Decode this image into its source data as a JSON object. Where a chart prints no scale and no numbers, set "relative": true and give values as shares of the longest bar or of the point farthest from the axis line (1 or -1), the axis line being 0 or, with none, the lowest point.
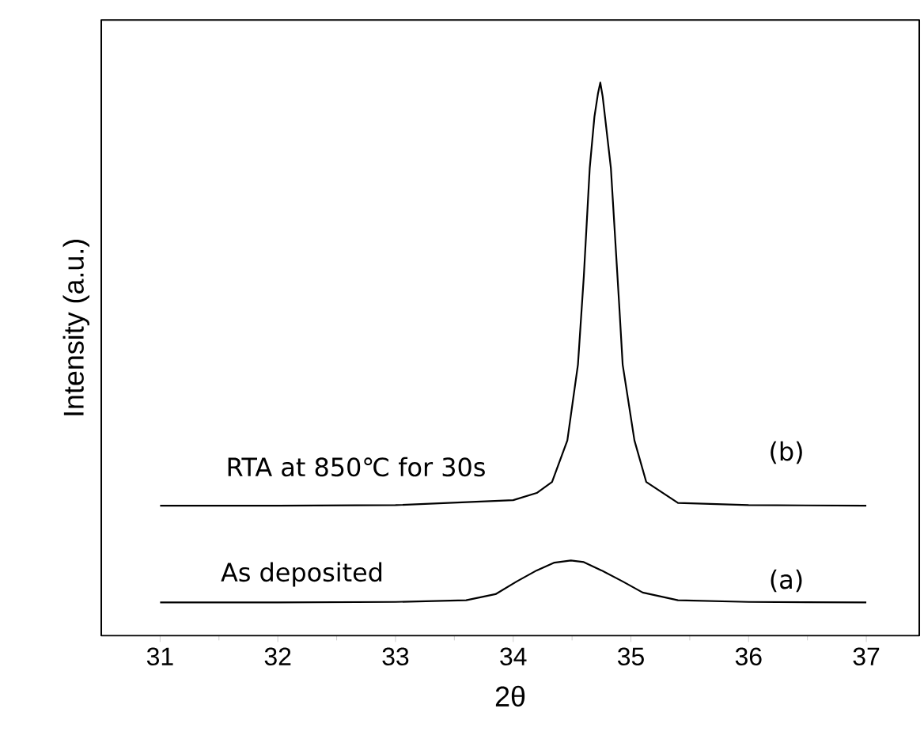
{
  "chart_data": {
    "type": "line",
    "relative": true,
    "xlabel": "2θ",
    "ylabel": "Intensity (a.u.)",
    "xlim": [
      30.5,
      37.45
    ],
    "xticks": [
      31,
      32,
      33,
      34,
      35,
      36,
      37
    ],
    "grid": false,
    "marker": "none",
    "series": [
      {
        "color": "#000000",
        "x": [
          31,
          32,
          33,
          33.6,
          33.85,
          34.03,
          34.2,
          34.35,
          34.49,
          34.6,
          34.75,
          34.93,
          35.1,
          35.4,
          36,
          37
        ],
        "values": [
          0.06,
          0.06,
          0.061,
          0.064,
          0.075,
          0.098,
          0.118,
          0.132,
          0.136,
          0.133,
          0.118,
          0.098,
          0.078,
          0.064,
          0.061,
          0.06
        ]
      },
      {
        "color": "#000000",
        "x": [
          31,
          32,
          33,
          34.0,
          34.2,
          34.33,
          34.46,
          34.55,
          34.6,
          34.65,
          34.69,
          34.72,
          34.74,
          34.76,
          34.78,
          34.83,
          34.9,
          34.93,
          35.03,
          35.13,
          35.4,
          36,
          37
        ],
        "values": [
          0.235,
          0.235,
          0.236,
          0.245,
          0.258,
          0.278,
          0.353,
          0.49,
          0.65,
          0.845,
          0.938,
          0.98,
          1.0,
          0.975,
          0.938,
          0.845,
          0.6,
          0.49,
          0.353,
          0.278,
          0.24,
          0.236,
          0.235
        ]
      }
    ],
    "annotations": [
      "RTA at 850℃ for 30s",
      "(b)",
      "As deposited",
      "(a)"
    ]
  }
}
